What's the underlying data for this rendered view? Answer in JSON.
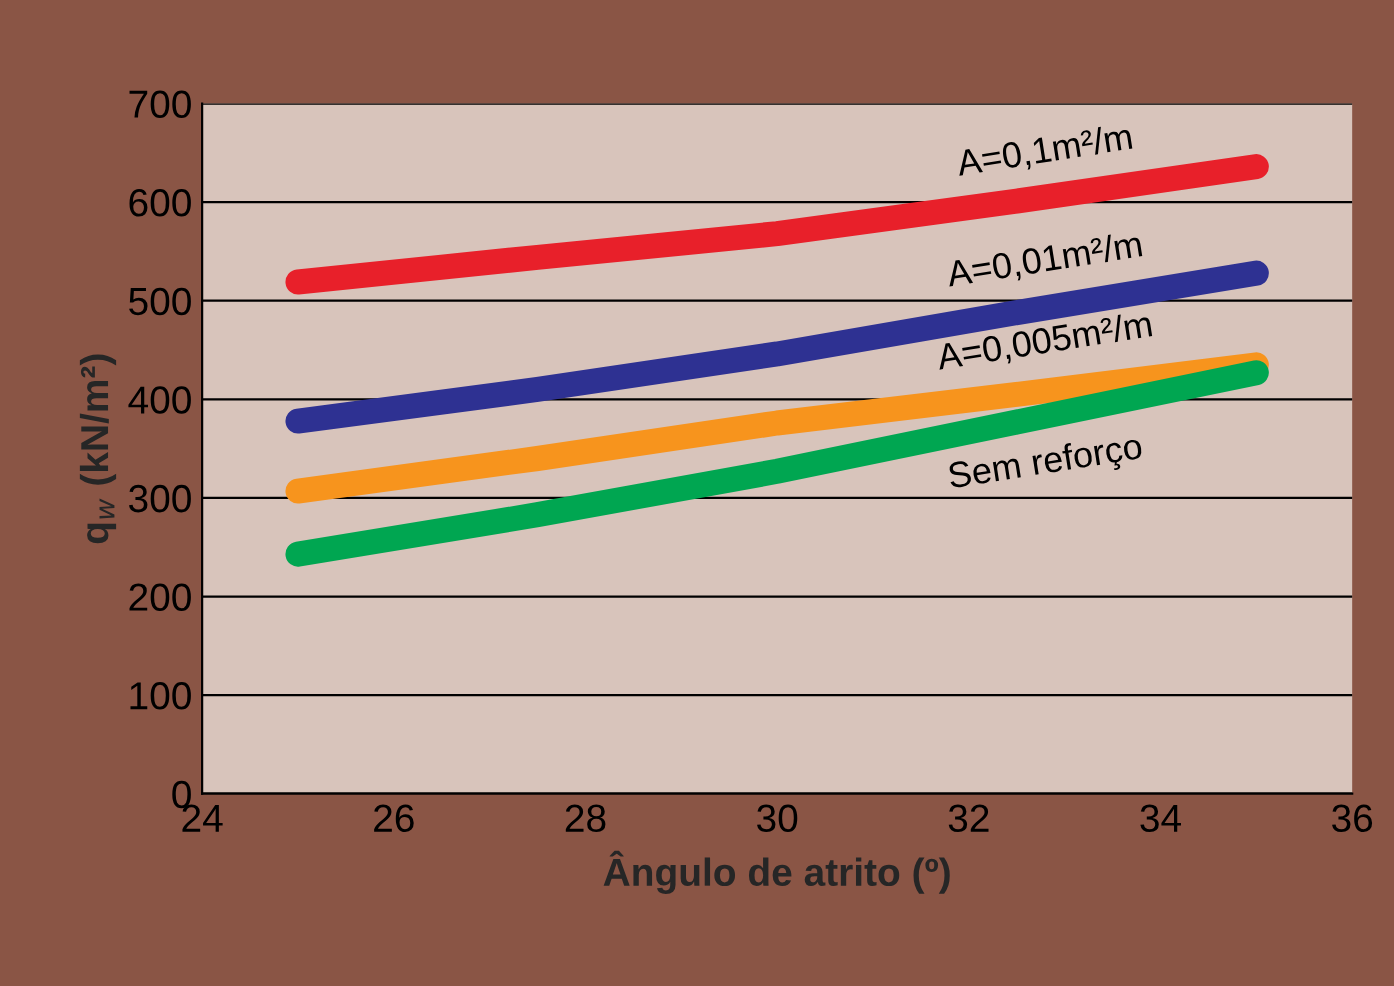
{
  "chart_data": {
    "type": "line",
    "xlabel": "Ângulo de atrito (º)",
    "ylabel": "q$_{w}$ (kN/m²)",
    "x": [
      25,
      27.5,
      30,
      32.5,
      35
    ],
    "series": [
      {
        "name": "A=0,1m²/m",
        "color": "#e8202a",
        "values": [
          519,
          544,
          568,
          601,
          636
        ]
      },
      {
        "name": "A=0,01m²/m",
        "color": "#2e3192",
        "values": [
          378,
          410,
          446,
          488,
          528
        ]
      },
      {
        "name": "A=0,005m²/m",
        "color": "#f7941d",
        "values": [
          307,
          340,
          376,
          405,
          435
        ]
      },
      {
        "name": "Sem reforço",
        "color": "#00a651",
        "values": [
          243,
          283,
          327,
          377,
          427
        ]
      }
    ],
    "xlim": [
      24,
      36
    ],
    "xticks": [
      24,
      26,
      28,
      30,
      32,
      34,
      36
    ],
    "ylim": [
      0,
      700
    ],
    "yticks": [
      0,
      100,
      200,
      300,
      400,
      500,
      600,
      700
    ],
    "grid": "y",
    "marker": "none",
    "line_style": "solid",
    "legend": false
  }
}
